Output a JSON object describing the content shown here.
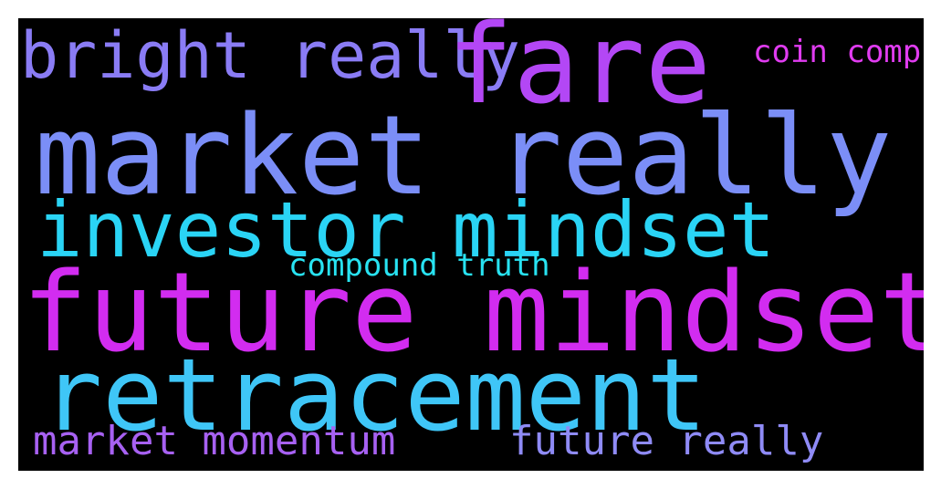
{
  "word_cloud": {
    "background_color": "#000000",
    "words": [
      {
        "key": "bright_really",
        "text": "bright really",
        "color": "#8a7cf5"
      },
      {
        "key": "fare",
        "text": "fare",
        "color": "#b347f5"
      },
      {
        "key": "coin_comp",
        "text": "coin comp",
        "color": "#e03cf0"
      },
      {
        "key": "market_really",
        "text": "market really",
        "color": "#7b8ef7"
      },
      {
        "key": "investor_mindset",
        "text": "investor mindset",
        "color": "#2ad4f5"
      },
      {
        "key": "compound_truth",
        "text": "compound truth",
        "color": "#28e3f2"
      },
      {
        "key": "future_mindset",
        "text": "future mindset",
        "color": "#d22cf0"
      },
      {
        "key": "retracement",
        "text": "retracement",
        "color": "#3fc6f7"
      },
      {
        "key": "market_momentum",
        "text": "market momentum",
        "color": "#a761f2"
      },
      {
        "key": "future_really",
        "text": "future really",
        "color": "#8f8bf6"
      }
    ]
  }
}
